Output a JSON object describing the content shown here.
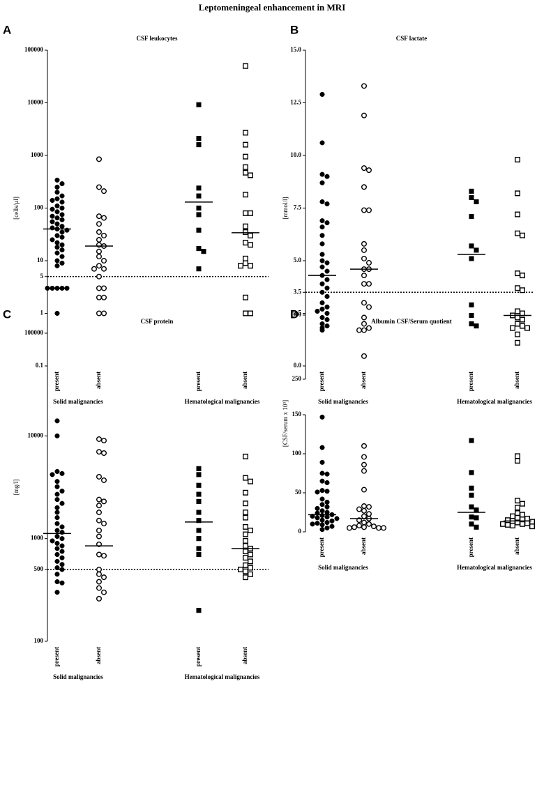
{
  "title": "Leptomeningeal enhancement in MRI",
  "chart_data": [
    {
      "type": "scatter",
      "panel": "A",
      "title": "CSF leukocytes",
      "y_label": "[cells/µl]",
      "log_scale": true,
      "categories": [
        "present",
        "absent",
        "present",
        "absent"
      ],
      "group_labels": [
        "Solid malignancies",
        "Hematological malignancies"
      ],
      "markers": [
        "filled-circle",
        "open-circle",
        "filled-square",
        "open-square"
      ],
      "ylim": [
        0.1,
        100000
      ],
      "yticks": [
        0.1,
        1,
        5,
        10,
        100,
        1000,
        10000,
        100000
      ],
      "reference_line": 5,
      "values": [
        [
          340,
          290,
          250,
          200,
          170,
          150,
          140,
          130,
          110,
          100,
          95,
          85,
          75,
          70,
          65,
          60,
          55,
          50,
          45,
          42,
          40,
          38,
          35,
          30,
          28,
          25,
          22,
          20,
          18,
          16,
          14,
          12,
          10,
          9,
          8,
          3,
          3,
          3,
          3,
          3,
          1
        ],
        [
          850,
          250,
          210,
          70,
          65,
          50,
          35,
          30,
          25,
          20,
          19,
          15,
          12,
          10,
          8,
          7,
          7,
          5,
          3,
          3,
          2,
          2,
          1,
          1
        ],
        [
          9200,
          2100,
          1600,
          240,
          170,
          100,
          75,
          38,
          17,
          15,
          7
        ],
        [
          50000,
          2700,
          1600,
          950,
          600,
          470,
          420,
          180,
          80,
          80,
          45,
          35,
          30,
          22,
          20,
          11,
          9,
          8,
          8,
          2,
          1,
          1
        ]
      ],
      "medians": [
        40,
        19,
        130,
        34
      ]
    },
    {
      "type": "scatter",
      "panel": "B",
      "title": "CSF lactate",
      "y_label": "[mmol/l]",
      "log_scale": false,
      "categories": [
        "present",
        "absent",
        "present",
        "absent"
      ],
      "group_labels": [
        "Solid malignancies",
        "Hematological malignancies"
      ],
      "markers": [
        "filled-circle",
        "open-circle",
        "filled-square",
        "open-square"
      ],
      "ylim": [
        0,
        15
      ],
      "yticks": [
        {
          "value": 0,
          "label": "0.0"
        },
        2.5,
        3.5,
        {
          "value": 5,
          "label": "5.0"
        },
        7.5,
        {
          "value": 10,
          "label": "10.0"
        },
        12.5,
        {
          "value": 15,
          "label": "15.0"
        }
      ],
      "reference_line": 3.5,
      "values": [
        [
          12.9,
          10.6,
          9.1,
          9.0,
          8.7,
          7.8,
          7.7,
          6.9,
          6.8,
          6.6,
          6.2,
          5.8,
          5.3,
          5.0,
          4.9,
          4.7,
          4.5,
          4.3,
          4.1,
          3.9,
          3.7,
          3.5,
          3.3,
          3.0,
          2.8,
          2.7,
          2.6,
          2.5,
          2.3,
          2.2,
          2.0,
          1.9,
          1.7
        ],
        [
          13.3,
          11.9,
          9.4,
          9.3,
          8.5,
          7.4,
          7.4,
          5.8,
          5.5,
          5.1,
          4.9,
          4.6,
          4.6,
          4.3,
          3.9,
          3.9,
          3.0,
          2.8,
          2.3,
          2.0,
          1.8,
          1.7,
          1.7
        ],
        [
          8.3,
          8.0,
          7.8,
          7.1,
          5.7,
          5.5,
          5.1,
          2.9,
          2.4,
          2.0,
          1.9
        ],
        [
          9.8,
          8.2,
          7.2,
          6.3,
          6.2,
          4.4,
          4.3,
          3.7,
          3.6,
          2.6,
          2.5,
          2.4,
          2.3,
          2.2,
          2.0,
          1.9,
          1.8,
          1.8,
          1.5,
          1.1
        ]
      ],
      "medians": [
        4.3,
        4.6,
        5.3,
        2.4
      ]
    },
    {
      "type": "scatter",
      "panel": "C",
      "title": "CSF protein",
      "y_label": "[mg/l]",
      "log_scale": true,
      "categories": [
        "present",
        "absent",
        "present",
        "absent"
      ],
      "group_labels": [
        "Solid malignancies",
        "Hematological malignancies"
      ],
      "markers": [
        "filled-circle",
        "open-circle",
        "filled-square",
        "open-square"
      ],
      "ylim": [
        100,
        100000
      ],
      "yticks": [
        100,
        500,
        1000,
        10000,
        100000
      ],
      "reference_line": 500,
      "values": [
        [
          14000,
          10000,
          4500,
          4300,
          4200,
          3600,
          3200,
          2900,
          2700,
          2400,
          2200,
          2000,
          1800,
          1600,
          1400,
          1300,
          1200,
          1150,
          1050,
          1000,
          950,
          900,
          850,
          800,
          750,
          700,
          650,
          600,
          560,
          520,
          500,
          450,
          380,
          370,
          300
        ],
        [
          9300,
          9000,
          7000,
          6800,
          4000,
          3700,
          2400,
          2300,
          2100,
          1800,
          1500,
          1400,
          1200,
          1050,
          880,
          700,
          680,
          500,
          450,
          420,
          380,
          330,
          300,
          260
        ],
        [
          4800,
          4200,
          3300,
          2700,
          2300,
          1800,
          1500,
          1200,
          1000,
          800,
          700,
          200
        ],
        [
          6300,
          3900,
          3600,
          2800,
          2200,
          1800,
          1600,
          1300,
          1200,
          1100,
          950,
          850,
          800,
          750,
          700,
          650,
          600,
          550,
          520,
          500,
          480,
          450,
          420
        ]
      ],
      "medians": [
        1120,
        850,
        1450,
        800
      ]
    },
    {
      "type": "scatter",
      "panel": "D",
      "title": "Albumin CSF/Serum quotient",
      "y_label": "[CSF/serum x 10³]",
      "log_scale": false,
      "categories": [
        "present",
        "absent",
        "present",
        "absent"
      ],
      "group_labels": [
        "Solid malignancies",
        "Hematological malignancies"
      ],
      "markers": [
        "filled-circle",
        "open-circle",
        "filled-square",
        "open-square"
      ],
      "ylim": [
        0,
        300
      ],
      "y_break": [
        150,
        250
      ],
      "yticks": [
        0,
        50,
        100,
        150,
        250,
        300
      ],
      "values": [
        [
          290,
          147,
          108,
          89,
          75,
          74,
          65,
          63,
          53,
          52,
          51,
          42,
          38,
          35,
          32,
          30,
          27,
          25,
          24,
          22,
          21,
          20,
          19,
          18,
          17,
          15,
          14,
          12,
          11,
          10,
          9,
          7,
          5,
          3
        ],
        [
          268,
          110,
          96,
          86,
          78,
          54,
          33,
          32,
          29,
          27,
          23,
          20,
          17,
          15,
          12,
          10,
          8,
          7,
          6,
          6,
          5,
          5,
          5
        ],
        [
          117,
          76,
          56,
          47,
          32,
          28,
          19,
          18,
          10,
          6
        ],
        [
          97,
          91,
          40,
          36,
          31,
          24,
          22,
          20,
          18,
          17,
          16,
          15,
          14,
          13,
          12,
          11,
          10,
          10,
          9,
          8,
          7
        ]
      ],
      "medians": [
        22,
        17,
        25,
        14
      ]
    }
  ]
}
